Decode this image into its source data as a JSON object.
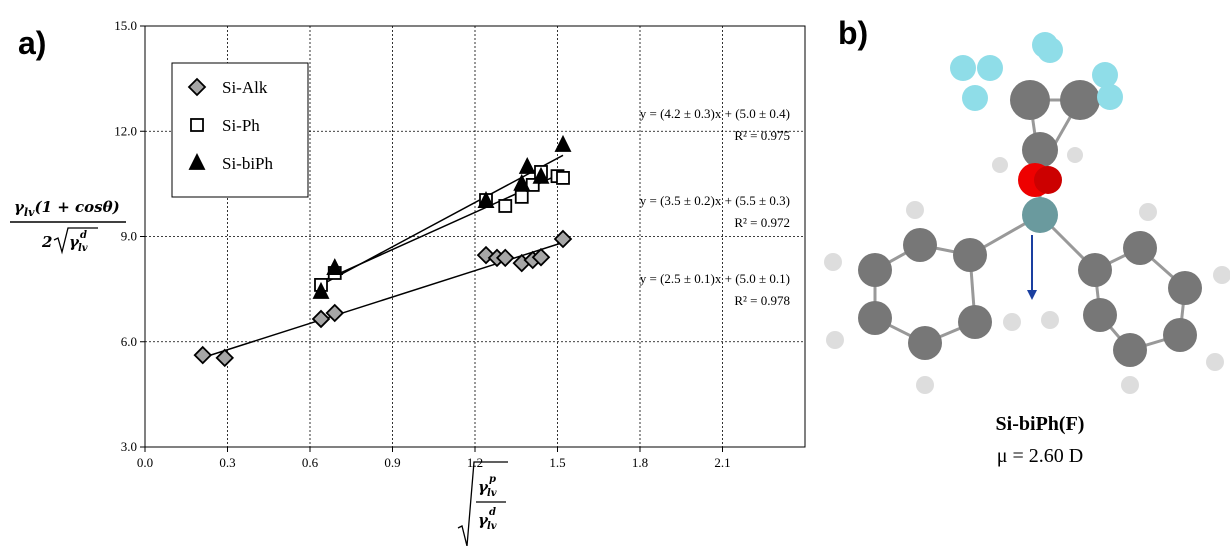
{
  "panel_labels": [
    "a)",
    "b)"
  ],
  "chart_data": {
    "type": "scatter",
    "y_label": {
      "numerator": [
        "γ",
        "lv",
        "(1 + cosθ)"
      ],
      "denominator": [
        "2",
        "γ",
        "lv",
        "d"
      ]
    },
    "x_label": {
      "numerator": [
        "γ",
        "lv",
        "p"
      ],
      "denominator": [
        "γ",
        "lv",
        "d"
      ]
    },
    "xlim": [
      0,
      2.4
    ],
    "ylim": [
      3,
      15
    ],
    "xticks": [
      {
        "value": 0,
        "label": "0.0"
      },
      {
        "value": 0.3,
        "label": "0.3"
      },
      {
        "value": 0.6,
        "label": "0.6"
      },
      {
        "value": 0.9,
        "label": "0.9"
      },
      {
        "value": 1.2,
        "label": "1.2"
      },
      {
        "value": 1.5,
        "label": "1.5"
      },
      {
        "value": 1.8,
        "label": "1.8"
      },
      {
        "value": 2.1,
        "label": "2.1"
      }
    ],
    "yticks": [
      {
        "value": 3,
        "label": "3.0"
      },
      {
        "value": 6,
        "label": "6.0"
      },
      {
        "value": 9,
        "label": "9.0"
      },
      {
        "value": 12,
        "label": "12.0"
      },
      {
        "value": 15,
        "label": "15.0"
      }
    ],
    "grid": true,
    "legend": "upper left",
    "trendlines": true,
    "series": [
      {
        "name": "Si-Alk",
        "marker": "diamond",
        "color": "#a6a6a6",
        "x": [
          0.21,
          0.29,
          0.64,
          0.69,
          1.24,
          1.28,
          1.31,
          1.37,
          1.41,
          1.44,
          1.52
        ],
        "values": [
          5.62,
          5.54,
          6.65,
          6.82,
          8.47,
          8.39,
          8.39,
          8.24,
          8.33,
          8.41,
          8.93
        ]
      },
      {
        "name": "Si-Ph",
        "marker": "square",
        "color": "#ffffff",
        "x": [
          0.64,
          0.69,
          1.24,
          1.31,
          1.37,
          1.41,
          1.44,
          1.5,
          1.52
        ],
        "values": [
          7.62,
          7.96,
          10.04,
          9.87,
          10.13,
          10.47,
          10.84,
          10.72,
          10.67
        ]
      },
      {
        "name": "Si-biPh",
        "marker": "triangle",
        "color": "#000000",
        "x": [
          0.64,
          0.69,
          1.24,
          1.37,
          1.39,
          1.44,
          1.52
        ],
        "values": [
          7.42,
          8.1,
          10.01,
          10.5,
          10.98,
          10.7,
          11.61
        ]
      }
    ],
    "annotations": [
      {
        "equation": "y = (4.2 ± 0.3)x + (5.0 ± 0.4)",
        "r2": "R² = 0.975"
      },
      {
        "equation": "y = (3.5 ± 0.2)x + (5.5 ± 0.3)",
        "r2": "R² = 0.972"
      },
      {
        "equation": "y = (2.5 ± 0.1)x + (5.0 ± 0.1)",
        "r2": "R² = 0.978"
      }
    ]
  },
  "molecule": {
    "name": "Si-biPh(F)",
    "dipole": "μ = 2.60 D"
  }
}
